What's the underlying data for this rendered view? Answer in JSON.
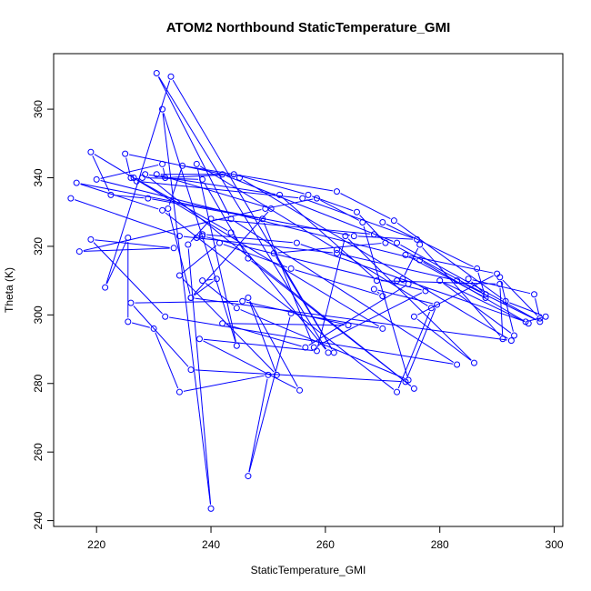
{
  "chart_data": {
    "type": "line",
    "title": "ATOM2 Northbound StaticTemperature_GMI",
    "xlabel": "StaticTemperature_GMI",
    "ylabel": "Theta (K)",
    "xlim": [
      212.5,
      301.5
    ],
    "ylim": [
      238.3,
      376.2
    ],
    "x_ticks": [
      220,
      240,
      260,
      280,
      300
    ],
    "y_ticks": [
      240,
      260,
      280,
      300,
      320,
      340,
      360
    ],
    "grid": false,
    "legend": "none",
    "series_color": "#0000ff",
    "points": [
      [
        215.5,
        334
      ],
      [
        234.5,
        323
      ],
      [
        262,
        318
      ],
      [
        283,
        310
      ],
      [
        297.5,
        298
      ],
      [
        272.5,
        321
      ],
      [
        242,
        341
      ],
      [
        230.5,
        341
      ],
      [
        250.5,
        331
      ],
      [
        236.5,
        305
      ],
      [
        241,
        310.5
      ],
      [
        238.5,
        310
      ],
      [
        244.5,
        302
      ],
      [
        274.5,
        281
      ],
      [
        266.5,
        327
      ],
      [
        258.5,
        334
      ],
      [
        249.5,
        331
      ],
      [
        217,
        318.5
      ],
      [
        233.5,
        319.5
      ],
      [
        219,
        322
      ],
      [
        232,
        299.5
      ],
      [
        283,
        285.5
      ],
      [
        243.5,
        328
      ],
      [
        230.5,
        370.5
      ],
      [
        260.5,
        289
      ],
      [
        243.5,
        324
      ],
      [
        226.5,
        340
      ],
      [
        226,
        340
      ],
      [
        225,
        347
      ],
      [
        245,
        340
      ],
      [
        292.5,
        292.5
      ],
      [
        236.5,
        305
      ],
      [
        232.5,
        331
      ],
      [
        235,
        343.5
      ],
      [
        262,
        336
      ],
      [
        272,
        327.5
      ],
      [
        291.5,
        304
      ],
      [
        298.5,
        299.5
      ],
      [
        295,
        298
      ],
      [
        255,
        321
      ],
      [
        238.5,
        323.5
      ],
      [
        237.5,
        322.5
      ],
      [
        238.5,
        323
      ],
      [
        277.5,
        307
      ],
      [
        258,
        290.5
      ],
      [
        249,
        328
      ],
      [
        229,
        334
      ],
      [
        222.5,
        335
      ],
      [
        219,
        347.5
      ],
      [
        270,
        296
      ],
      [
        254,
        300.5
      ],
      [
        246.5,
        253
      ],
      [
        250,
        282.5
      ],
      [
        234.5,
        277.5
      ],
      [
        230,
        296
      ],
      [
        225.5,
        298
      ],
      [
        225.5,
        322.5
      ],
      [
        221.5,
        308
      ],
      [
        233,
        369.5
      ],
      [
        261.5,
        289
      ],
      [
        251,
        318
      ],
      [
        270.5,
        321
      ],
      [
        265.5,
        330
      ],
      [
        257,
        335
      ],
      [
        244,
        341
      ],
      [
        232,
        340
      ],
      [
        231.5,
        344
      ],
      [
        220,
        339.5
      ],
      [
        276.5,
        316
      ],
      [
        295.5,
        297.5
      ],
      [
        280,
        310
      ],
      [
        293,
        294
      ],
      [
        290.5,
        311
      ],
      [
        297.5,
        299
      ],
      [
        296.5,
        306
      ],
      [
        285,
        310.5
      ],
      [
        288,
        306
      ],
      [
        268.5,
        323.5
      ],
      [
        240,
        328
      ],
      [
        236,
        320.5
      ],
      [
        240,
        243.5
      ],
      [
        231.5,
        360
      ],
      [
        244.5,
        291
      ],
      [
        237.5,
        344
      ],
      [
        262,
        319
      ],
      [
        278.5,
        302
      ],
      [
        272.5,
        277.5
      ],
      [
        231.5,
        330.5
      ],
      [
        216.5,
        338.5
      ],
      [
        265,
        323
      ],
      [
        276,
        322
      ],
      [
        256,
        334
      ],
      [
        227,
        339
      ],
      [
        228,
        340
      ],
      [
        238.5,
        339.5
      ],
      [
        246.5,
        316.5
      ],
      [
        275.5,
        278.5
      ],
      [
        228.5,
        341
      ],
      [
        252,
        335
      ],
      [
        269,
        310
      ],
      [
        290.5,
        309
      ],
      [
        291,
        293
      ],
      [
        276.5,
        320.5
      ],
      [
        273.5,
        310.5
      ],
      [
        272.5,
        310
      ],
      [
        274.5,
        309
      ],
      [
        256.5,
        290.5
      ],
      [
        242,
        297.5
      ],
      [
        264,
        297
      ],
      [
        245.5,
        304
      ],
      [
        226,
        303.5
      ],
      [
        236.5,
        284
      ],
      [
        274,
        280.5
      ],
      [
        279.5,
        303
      ],
      [
        268.5,
        307.5
      ],
      [
        270,
        305.5
      ],
      [
        254,
        313.5
      ],
      [
        241.5,
        321
      ],
      [
        234.5,
        311.5
      ],
      [
        251.5,
        282.5
      ],
      [
        246.5,
        305
      ],
      [
        255.5,
        278
      ],
      [
        238,
        293
      ],
      [
        258.5,
        289.5
      ],
      [
        263.5,
        323
      ],
      [
        286,
        286
      ],
      [
        275.5,
        299.5
      ],
      [
        290,
        312
      ],
      [
        274,
        317.5
      ],
      [
        288,
        305
      ],
      [
        286.5,
        313.5
      ],
      [
        270,
        327
      ]
    ]
  }
}
